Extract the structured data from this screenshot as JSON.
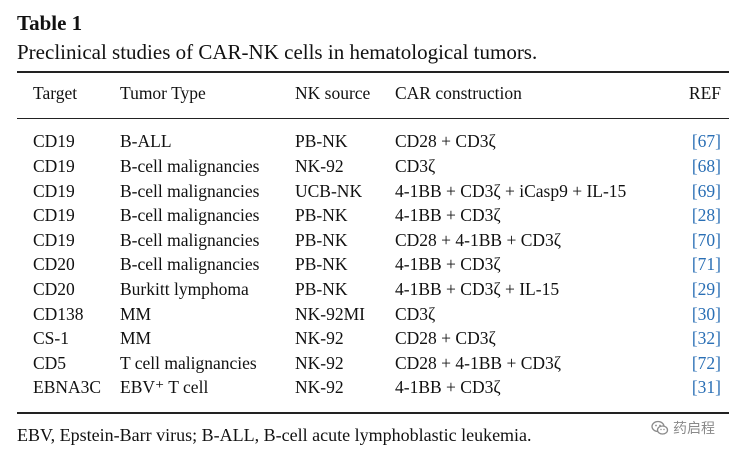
{
  "table": {
    "title": "Table 1",
    "caption": "Preclinical studies of CAR-NK cells in hematological tumors.",
    "headers": [
      "Target",
      "Tumor Type",
      "NK source",
      "CAR construction",
      "REF"
    ],
    "rows": [
      {
        "target": "CD19",
        "tumor": "B-ALL",
        "source": "PB-NK",
        "construction": "CD28 + CD3ζ",
        "ref": "[67]"
      },
      {
        "target": "CD19",
        "tumor": "B-cell malignancies",
        "source": "NK-92",
        "construction": "CD3ζ",
        "ref": "[68]"
      },
      {
        "target": "CD19",
        "tumor": "B-cell malignancies",
        "source": "UCB-NK",
        "construction": "4-1BB + CD3ζ + iCasp9 + IL-15",
        "ref": "[69]"
      },
      {
        "target": "CD19",
        "tumor": "B-cell malignancies",
        "source": "PB-NK",
        "construction": "4-1BB + CD3ζ",
        "ref": "[28]"
      },
      {
        "target": "CD19",
        "tumor": "B-cell malignancies",
        "source": "PB-NK",
        "construction": "CD28 + 4-1BB + CD3ζ",
        "ref": "[70]"
      },
      {
        "target": "CD20",
        "tumor": "B-cell malignancies",
        "source": "PB-NK",
        "construction": "4-1BB + CD3ζ",
        "ref": "[71]"
      },
      {
        "target": "CD20",
        "tumor": "Burkitt lymphoma",
        "source": "PB-NK",
        "construction": "4-1BB + CD3ζ + IL-15",
        "ref": "[29]"
      },
      {
        "target": "CD138",
        "tumor": "MM",
        "source": "NK-92MI",
        "construction": "CD3ζ",
        "ref": "[30]"
      },
      {
        "target": "CS-1",
        "tumor": "MM",
        "source": "NK-92",
        "construction": "CD28 + CD3ζ",
        "ref": "[32]"
      },
      {
        "target": "CD5",
        "tumor": "T cell malignancies",
        "source": "NK-92",
        "construction": "CD28 + 4-1BB + CD3ζ",
        "ref": "[72]"
      },
      {
        "target": "EBNA3C",
        "tumor": "EBV⁺ T cell",
        "source": "NK-92",
        "construction": "4-1BB + CD3ζ",
        "ref": "[31]"
      }
    ],
    "footnote": "EBV, Epstein-Barr virus; B-ALL, B-cell acute lymphoblastic leukemia."
  },
  "watermark": {
    "icon": "wechat-icon",
    "text": "药启程"
  },
  "colors": {
    "ref_link": "#2a6fb5",
    "text": "#111111"
  }
}
